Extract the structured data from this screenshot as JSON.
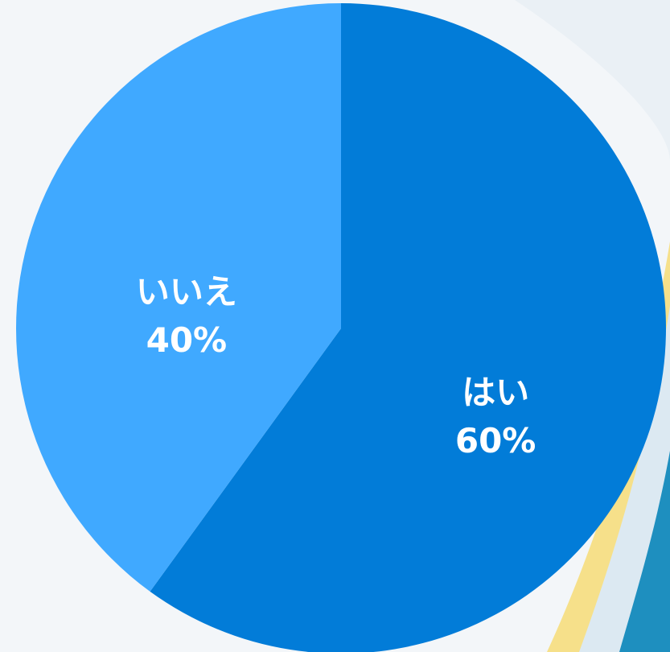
{
  "chart_data": {
    "type": "pie",
    "categories": [
      "はい",
      "いいえ"
    ],
    "values": [
      60,
      40
    ],
    "value_labels": [
      "60%",
      "40%"
    ],
    "colors": [
      "#027cd8",
      "#40a9ff"
    ]
  }
}
